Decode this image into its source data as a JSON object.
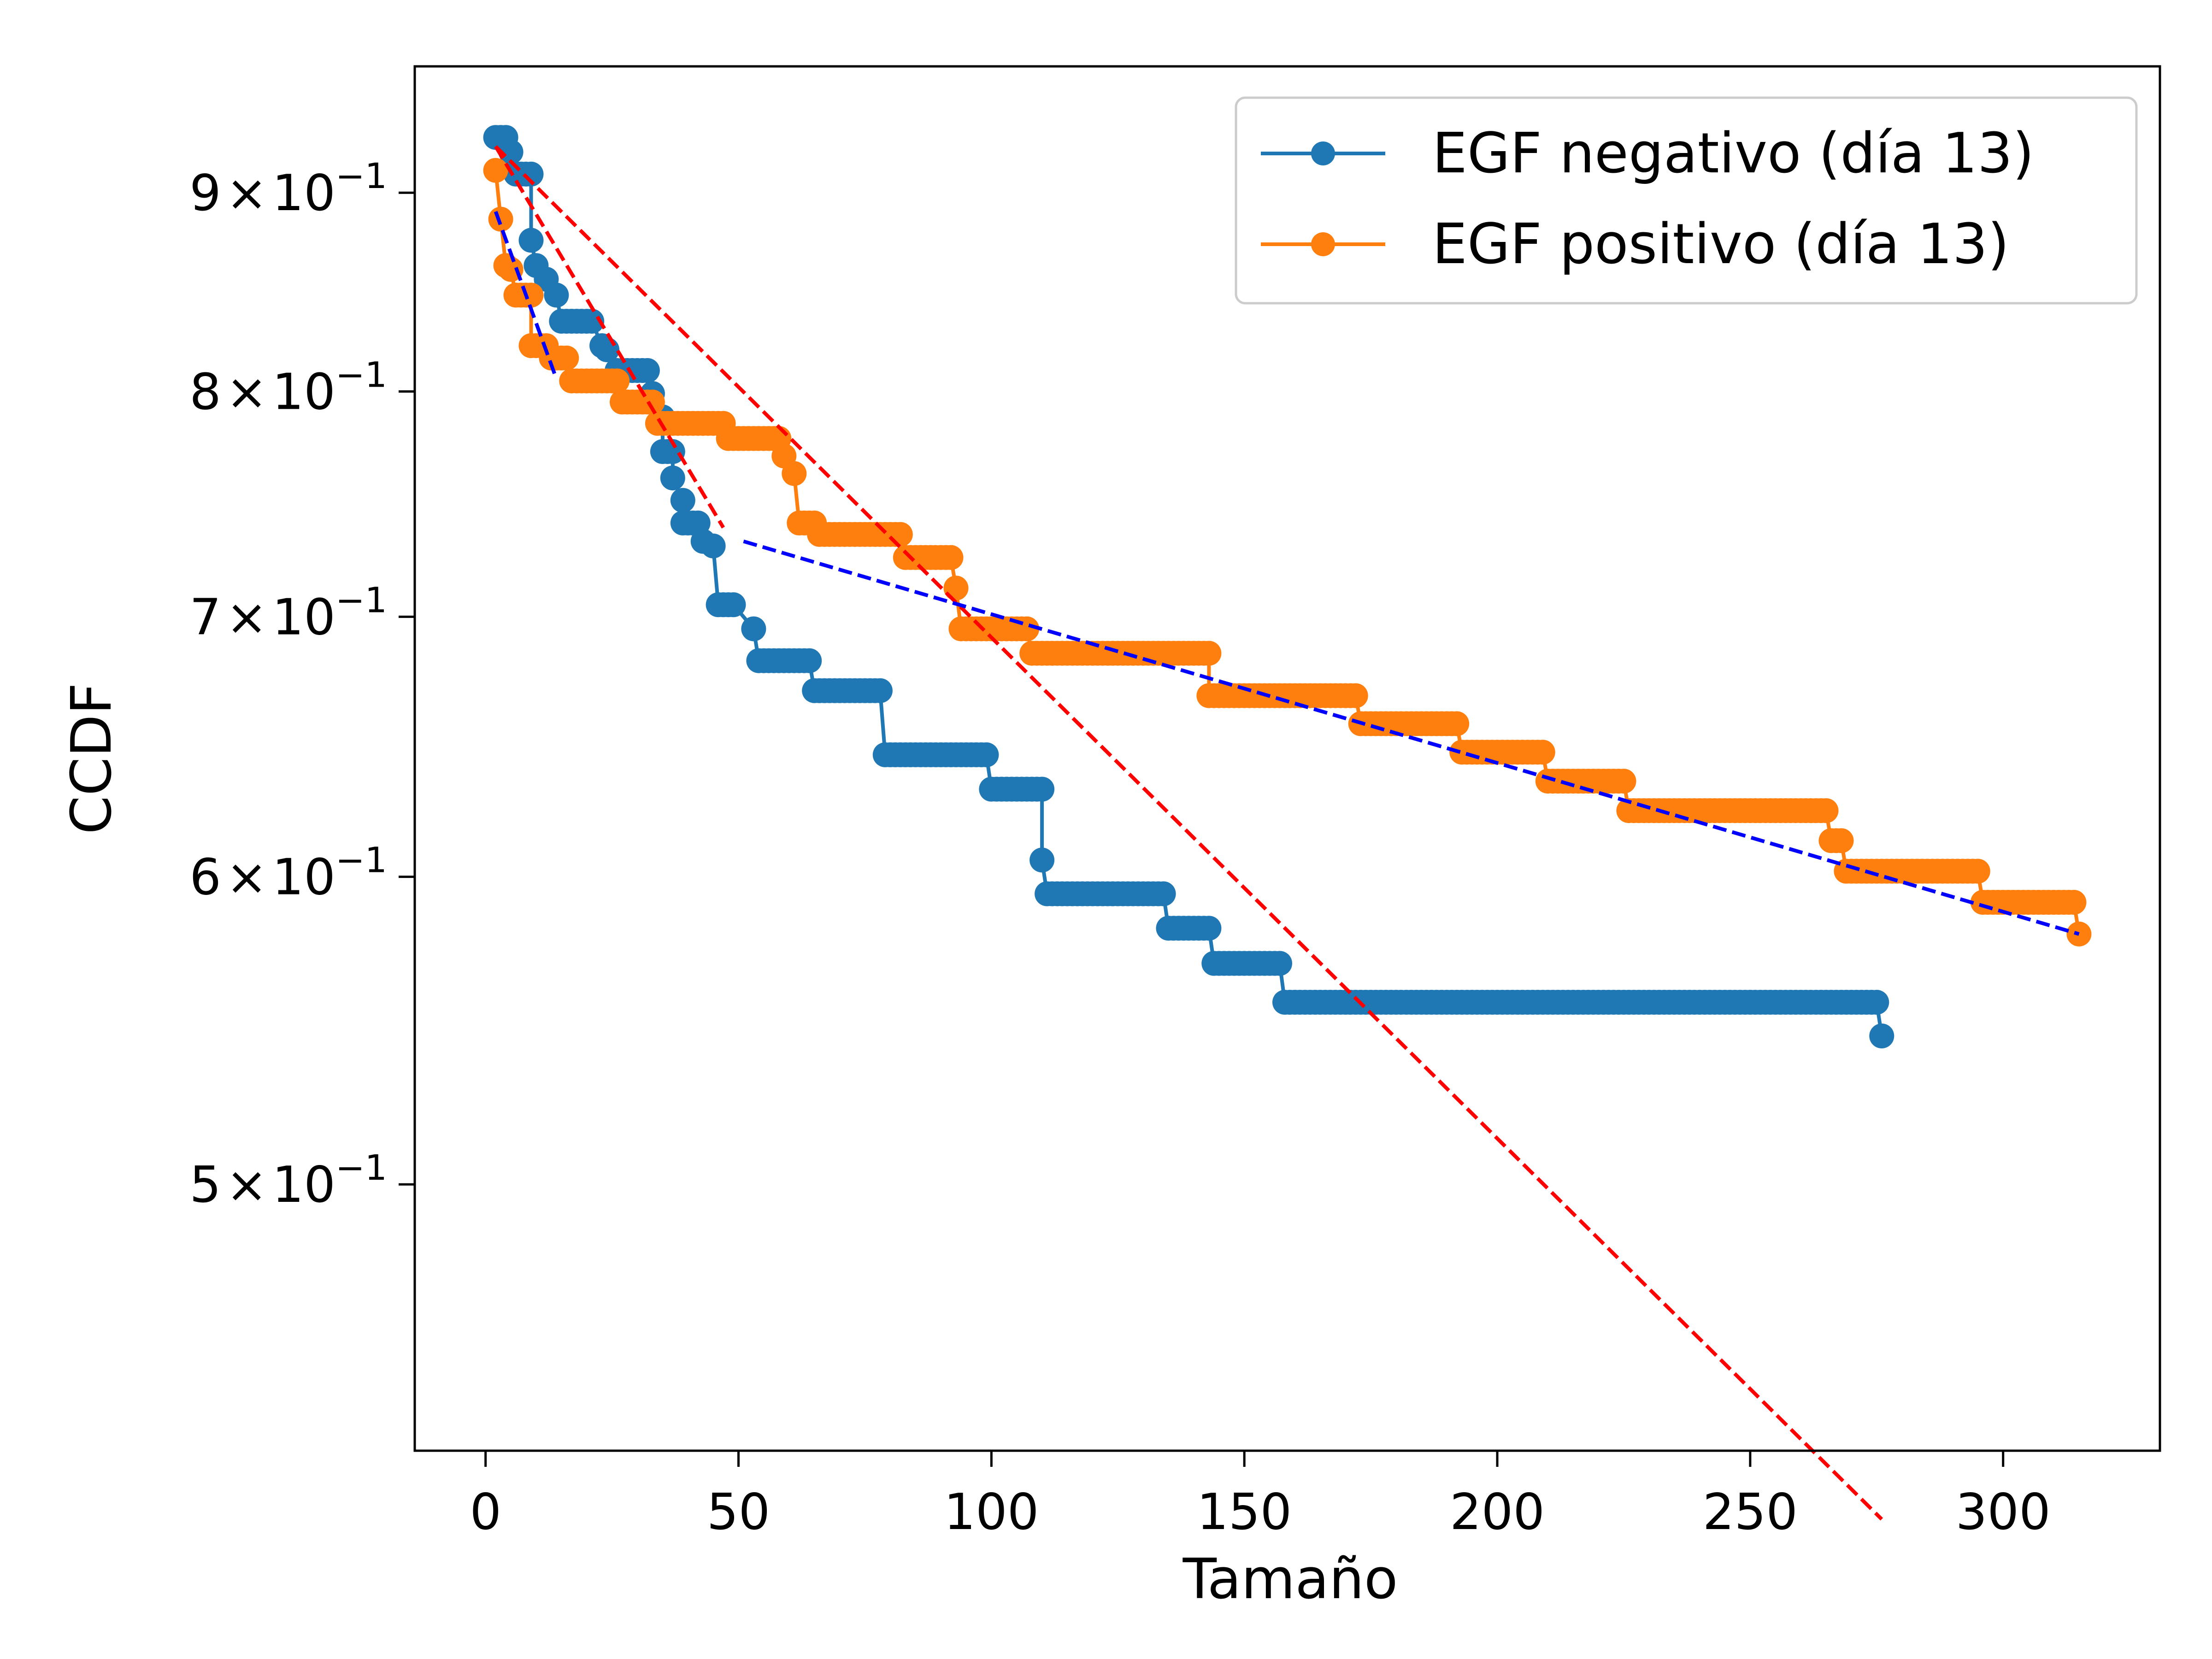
{
  "chart_data": {
    "type": "line",
    "title": "",
    "xlabel": "Tamaño",
    "ylabel": "CCDF",
    "xlim": [
      -14,
      331
    ],
    "ylim": [
      0.427,
      0.97
    ],
    "yscale": "log",
    "x_ticks": [
      0,
      50,
      100,
      150,
      200,
      250,
      300
    ],
    "x_tick_labels": [
      "0",
      "50",
      "100",
      "150",
      "200",
      "250",
      "300"
    ],
    "y_ticks": [
      0.5,
      0.6,
      0.7,
      0.8,
      0.9
    ],
    "y_tick_labels": [
      {
        "mantissa": "5",
        "times": "×",
        "base": "10",
        "exponent": "−1"
      },
      {
        "mantissa": "6",
        "times": "×",
        "base": "10",
        "exponent": "−1"
      },
      {
        "mantissa": "7",
        "times": "×",
        "base": "10",
        "exponent": "−1"
      },
      {
        "mantissa": "8",
        "times": "×",
        "base": "10",
        "exponent": "−1"
      },
      {
        "mantissa": "9",
        "times": "×",
        "base": "10",
        "exponent": "−1"
      }
    ],
    "legend_position": "top-right",
    "series": [
      {
        "name": "EGF negativo (día 13)",
        "color": "#1f77b4",
        "steps": [
          [
            2,
            0.93
          ],
          [
            4,
            0.93
          ],
          [
            5,
            0.922
          ],
          [
            6,
            0.91
          ],
          [
            9,
            0.91
          ],
          [
            9,
            0.875
          ],
          [
            10,
            0.862
          ],
          [
            12,
            0.855
          ],
          [
            14,
            0.847
          ],
          [
            15,
            0.834
          ],
          [
            20,
            0.834
          ],
          [
            21,
            0.834
          ],
          [
            23,
            0.822
          ],
          [
            24,
            0.82
          ],
          [
            26,
            0.81
          ],
          [
            32,
            0.81
          ],
          [
            33,
            0.799
          ],
          [
            35,
            0.788
          ],
          [
            35,
            0.772
          ],
          [
            37,
            0.772
          ],
          [
            37,
            0.76
          ],
          [
            39,
            0.75
          ],
          [
            39,
            0.74
          ],
          [
            42,
            0.74
          ],
          [
            43,
            0.732
          ],
          [
            45,
            0.73
          ],
          [
            46,
            0.705
          ],
          [
            49,
            0.705
          ],
          [
            53,
            0.695
          ],
          [
            54,
            0.682
          ],
          [
            64,
            0.682
          ],
          [
            65,
            0.67
          ],
          [
            78,
            0.67
          ],
          [
            79,
            0.645
          ],
          [
            99,
            0.645
          ],
          [
            100,
            0.632
          ],
          [
            110,
            0.632
          ],
          [
            110,
            0.606
          ],
          [
            111,
            0.594
          ],
          [
            134,
            0.594
          ],
          [
            135,
            0.582
          ],
          [
            143,
            0.582
          ],
          [
            144,
            0.57
          ],
          [
            157,
            0.57
          ],
          [
            158,
            0.557
          ],
          [
            275,
            0.557
          ],
          [
            276,
            0.546
          ]
        ]
      },
      {
        "name": "EGF positivo (día 13)",
        "color": "#ff7f0e",
        "steps": [
          [
            2,
            0.912
          ],
          [
            3,
            0.886
          ],
          [
            4,
            0.862
          ],
          [
            5,
            0.86
          ],
          [
            6,
            0.847
          ],
          [
            9,
            0.847
          ],
          [
            9,
            0.822
          ],
          [
            12,
            0.822
          ],
          [
            13,
            0.816
          ],
          [
            16,
            0.816
          ],
          [
            17,
            0.805
          ],
          [
            26,
            0.805
          ],
          [
            27,
            0.795
          ],
          [
            33,
            0.795
          ],
          [
            34,
            0.785
          ],
          [
            47,
            0.785
          ],
          [
            48,
            0.778
          ],
          [
            58,
            0.778
          ],
          [
            59,
            0.77
          ],
          [
            61,
            0.762
          ],
          [
            62,
            0.74
          ],
          [
            65,
            0.74
          ],
          [
            66,
            0.735
          ],
          [
            82,
            0.735
          ],
          [
            83,
            0.725
          ],
          [
            92,
            0.725
          ],
          [
            93,
            0.712
          ],
          [
            94,
            0.695
          ],
          [
            107,
            0.695
          ],
          [
            108,
            0.685
          ],
          [
            143,
            0.685
          ],
          [
            143,
            0.668
          ],
          [
            172,
            0.668
          ],
          [
            173,
            0.657
          ],
          [
            192,
            0.657
          ],
          [
            193,
            0.646
          ],
          [
            209,
            0.646
          ],
          [
            210,
            0.635
          ],
          [
            225,
            0.635
          ],
          [
            226,
            0.624
          ],
          [
            265,
            0.624
          ],
          [
            266,
            0.613
          ],
          [
            268,
            0.613
          ],
          [
            269,
            0.602
          ],
          [
            295,
            0.602
          ],
          [
            296,
            0.591
          ],
          [
            314,
            0.591
          ],
          [
            315,
            0.58
          ]
        ]
      }
    ],
    "fit_lines": [
      {
        "name": "fit-red-negativo",
        "color": "#ff0000",
        "x": [
          2,
          276
        ],
        "y": [
          0.925,
          0.41
        ]
      },
      {
        "name": "fit-blue-negativo",
        "color": "#0000ff",
        "x": [
          2,
          14
        ],
        "y": [
          0.89,
          0.806
        ]
      },
      {
        "name": "fit-red-positivo",
        "color": "#ff0000",
        "x": [
          2,
          47
        ],
        "y": [
          0.925,
          0.738
        ]
      },
      {
        "name": "fit-blue-positivo",
        "color": "#0000ff",
        "x": [
          51,
          315
        ],
        "y": [
          0.732,
          0.58
        ]
      }
    ]
  }
}
